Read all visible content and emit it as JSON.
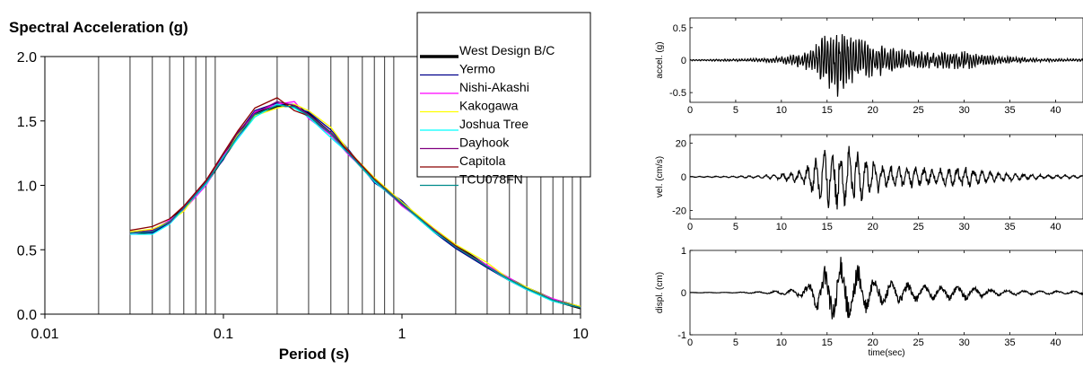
{
  "chart_data": [
    {
      "type": "line",
      "title": "Spectral Acceleration (g)",
      "xlabel": "Period (s)",
      "ylabel": "",
      "xscale": "log",
      "xlim": [
        0.01,
        10
      ],
      "ylim": [
        0,
        2.0
      ],
      "x_ticks": [
        0.01,
        0.1,
        1,
        10
      ],
      "x_tick_labels": [
        "0.01",
        "0.1",
        "1",
        "10"
      ],
      "y_ticks": [
        0,
        0.5,
        1.0,
        1.5,
        2.0
      ],
      "y_tick_labels": [
        "0.0",
        "0.5",
        "1.0",
        "1.5",
        "2.0"
      ],
      "grid": "vertical log grid",
      "legend_position": "top-right",
      "x": [
        0.03,
        0.04,
        0.05,
        0.06,
        0.08,
        0.1,
        0.12,
        0.15,
        0.2,
        0.25,
        0.3,
        0.4,
        0.5,
        0.7,
        1,
        1.5,
        2,
        3,
        4,
        5,
        7,
        10
      ],
      "series": [
        {
          "name": "West Design B/C",
          "color": "#000000",
          "width": 3.5,
          "values": [
            0.63,
            0.64,
            0.72,
            0.82,
            1.02,
            1.22,
            1.38,
            1.55,
            1.62,
            1.62,
            1.55,
            1.4,
            1.26,
            1.04,
            0.86,
            0.65,
            0.53,
            0.37,
            0.27,
            0.2,
            0.11,
            0.05
          ]
        },
        {
          "name": "Yermo",
          "color": "#00008b",
          "width": 1.3,
          "values": [
            0.64,
            0.63,
            0.71,
            0.83,
            1.03,
            1.2,
            1.4,
            1.58,
            1.64,
            1.6,
            1.57,
            1.43,
            1.28,
            1.02,
            0.88,
            0.64,
            0.51,
            0.36,
            0.26,
            0.19,
            0.11,
            0.05
          ]
        },
        {
          "name": "Nishi-Akashi",
          "color": "#ff00ff",
          "width": 1.3,
          "values": [
            0.62,
            0.65,
            0.73,
            0.81,
            1.0,
            1.23,
            1.37,
            1.57,
            1.63,
            1.65,
            1.52,
            1.39,
            1.24,
            1.05,
            0.84,
            0.66,
            0.52,
            0.38,
            0.28,
            0.2,
            0.12,
            0.05
          ]
        },
        {
          "name": "Kakogawa",
          "color": "#ffff00",
          "width": 1.3,
          "values": [
            0.64,
            0.66,
            0.72,
            0.8,
            1.04,
            1.21,
            1.39,
            1.54,
            1.6,
            1.63,
            1.58,
            1.45,
            1.27,
            1.06,
            0.87,
            0.67,
            0.54,
            0.4,
            0.27,
            0.21,
            0.11,
            0.06
          ]
        },
        {
          "name": "Joshua Tree",
          "color": "#00ffff",
          "width": 1.3,
          "values": [
            0.62,
            0.62,
            0.7,
            0.82,
            1.01,
            1.22,
            1.36,
            1.53,
            1.63,
            1.6,
            1.53,
            1.37,
            1.25,
            1.03,
            0.85,
            0.64,
            0.53,
            0.37,
            0.26,
            0.19,
            0.1,
            0.05
          ]
        },
        {
          "name": "Dayhook",
          "color": "#800080",
          "width": 1.3,
          "values": [
            0.63,
            0.65,
            0.71,
            0.83,
            1.03,
            1.24,
            1.41,
            1.56,
            1.65,
            1.62,
            1.55,
            1.41,
            1.26,
            1.04,
            0.85,
            0.66,
            0.52,
            0.37,
            0.27,
            0.2,
            0.11,
            0.05
          ]
        },
        {
          "name": "Capitola",
          "color": "#8b0000",
          "width": 1.3,
          "values": [
            0.65,
            0.68,
            0.74,
            0.84,
            1.04,
            1.25,
            1.42,
            1.6,
            1.68,
            1.58,
            1.54,
            1.4,
            1.27,
            1.05,
            0.86,
            0.65,
            0.53,
            0.37,
            0.27,
            0.2,
            0.11,
            0.05
          ]
        },
        {
          "name": "TCU078FN",
          "color": "#008b8b",
          "width": 1.3,
          "values": [
            0.63,
            0.64,
            0.72,
            0.82,
            1.02,
            1.21,
            1.38,
            1.55,
            1.62,
            1.61,
            1.54,
            1.4,
            1.25,
            1.04,
            0.86,
            0.65,
            0.52,
            0.37,
            0.27,
            0.2,
            0.11,
            0.05
          ]
        }
      ]
    },
    {
      "type": "line",
      "title": "",
      "xlabel": "",
      "ylabel": "accel. (g)",
      "xlim": [
        0,
        43
      ],
      "ylim": [
        -0.65,
        0.65
      ],
      "x_ticks": [
        0,
        5,
        10,
        15,
        20,
        25,
        30,
        35,
        40
      ],
      "y_ticks": [
        -0.5,
        0,
        0.5
      ],
      "y_tick_labels": [
        "-0.5",
        "0",
        "0.5"
      ],
      "series": [
        {
          "name": "",
          "color": "#000000",
          "envelope": {
            "t": [
              0,
              5,
              8,
              10,
              12,
              13,
              14,
              15,
              16,
              17,
              18,
              19,
              20,
              22,
              24,
              26,
              28,
              30,
              32,
              34,
              38,
              43
            ],
            "amp": [
              0.01,
              0.02,
              0.03,
              0.06,
              0.12,
              0.18,
              0.3,
              0.5,
              0.58,
              0.52,
              0.42,
              0.38,
              0.3,
              0.2,
              0.16,
              0.14,
              0.14,
              0.16,
              0.1,
              0.06,
              0.03,
              0.02
            ]
          }
        }
      ]
    },
    {
      "type": "line",
      "title": "",
      "xlabel": "",
      "ylabel": "vel. (cm/s)",
      "xlim": [
        0,
        43
      ],
      "ylim": [
        -25,
        25
      ],
      "x_ticks": [
        0,
        5,
        10,
        15,
        20,
        25,
        30,
        35,
        40
      ],
      "y_ticks": [
        -20,
        0,
        20
      ],
      "y_tick_labels": [
        "-20",
        "0",
        "20"
      ],
      "series": [
        {
          "name": "",
          "color": "#000000",
          "envelope": {
            "t": [
              0,
              5,
              8,
              10,
              12,
              13,
              14,
              15,
              16,
              17,
              18,
              19,
              20,
              22,
              24,
              26,
              28,
              30,
              32,
              34,
              38,
              43
            ],
            "amp": [
              0.3,
              0.5,
              1.0,
              2.0,
              4.5,
              8,
              15,
              20,
              21,
              20,
              17,
              14,
              11,
              8,
              7,
              6,
              6,
              7,
              4,
              3,
              1.5,
              1
            ]
          }
        }
      ]
    },
    {
      "type": "line",
      "title": "",
      "xlabel": "time(sec)",
      "ylabel": "displ. (cm)",
      "xlim": [
        0,
        43
      ],
      "ylim": [
        -1,
        1
      ],
      "x_ticks": [
        0,
        5,
        10,
        15,
        20,
        25,
        30,
        35,
        40
      ],
      "y_ticks": [
        -1,
        0,
        1
      ],
      "y_tick_labels": [
        "-1",
        "0",
        "1"
      ],
      "series": [
        {
          "name": "",
          "color": "#000000",
          "envelope": {
            "t": [
              0,
              5,
              8,
              10,
              12,
              13,
              14,
              15,
              16,
              17,
              18,
              19,
              20,
              22,
              24,
              26,
              28,
              30,
              32,
              34,
              38,
              43
            ],
            "amp": [
              0.005,
              0.01,
              0.03,
              0.05,
              0.12,
              0.22,
              0.45,
              0.7,
              0.85,
              0.9,
              0.75,
              0.6,
              0.45,
              0.3,
              0.25,
              0.2,
              0.18,
              0.2,
              0.12,
              0.08,
              0.05,
              0.04
            ]
          }
        }
      ]
    }
  ]
}
